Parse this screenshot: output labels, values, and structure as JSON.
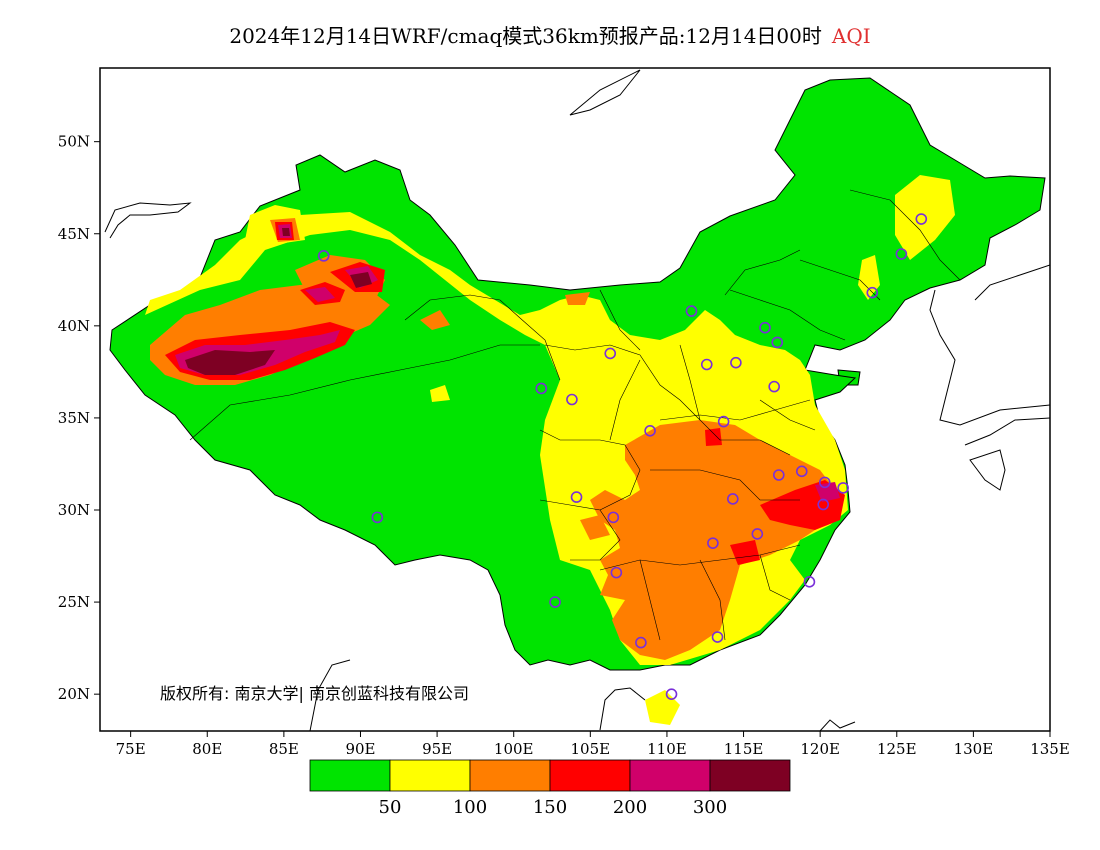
{
  "title": {
    "main": "2024年12月14日WRF/cmaq模式36km预报产品:12月14日00时",
    "variable": "AQI"
  },
  "copyright": "版权所有: 南京大学| 南京创蓝科技有限公司",
  "axes": {
    "x_ticks": [
      "75E",
      "80E",
      "85E",
      "90E",
      "95E",
      "100E",
      "105E",
      "110E",
      "115E",
      "120E",
      "125E",
      "130E",
      "135E"
    ],
    "y_ticks": [
      "50N",
      "45N",
      "40N",
      "35N",
      "30N",
      "25N",
      "20N"
    ],
    "lon_range": [
      73,
      135
    ],
    "lat_range": [
      18,
      54
    ]
  },
  "legend": {
    "labels": [
      "50",
      "100",
      "150",
      "200",
      "300"
    ],
    "colors": [
      "#00e400",
      "#ffff00",
      "#ff7e00",
      "#ff0000",
      "#d0006a",
      "#7e0023"
    ]
  },
  "stations": [
    [
      87.6,
      43.8
    ],
    [
      91.1,
      29.6
    ],
    [
      101.8,
      36.6
    ],
    [
      103.8,
      36.0
    ],
    [
      106.3,
      38.5
    ],
    [
      111.6,
      40.8
    ],
    [
      112.6,
      37.9
    ],
    [
      114.5,
      38.0
    ],
    [
      116.4,
      39.9
    ],
    [
      117.2,
      39.1
    ],
    [
      117.0,
      36.7
    ],
    [
      113.7,
      34.8
    ],
    [
      108.9,
      34.3
    ],
    [
      104.1,
      30.7
    ],
    [
      106.5,
      29.6
    ],
    [
      114.3,
      30.6
    ],
    [
      117.3,
      31.9
    ],
    [
      118.8,
      32.1
    ],
    [
      121.5,
      31.2
    ],
    [
      120.2,
      30.3
    ],
    [
      115.9,
      28.7
    ],
    [
      113.0,
      28.2
    ],
    [
      106.7,
      26.6
    ],
    [
      102.7,
      25.0
    ],
    [
      108.3,
      22.8
    ],
    [
      113.3,
      23.1
    ],
    [
      119.3,
      26.1
    ],
    [
      110.3,
      20.0
    ],
    [
      123.4,
      41.8
    ],
    [
      125.3,
      43.9
    ],
    [
      126.6,
      45.8
    ],
    [
      120.3,
      31.5
    ]
  ]
}
